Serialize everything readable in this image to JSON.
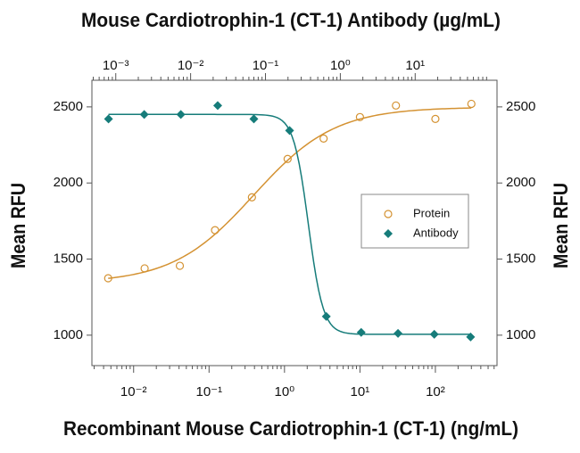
{
  "chart_data": {
    "type": "scatter",
    "x2label": "Mouse Cardiotrophin-1 (CT-1) Antibody (µg/mL)",
    "xlabel": "Recombinant Mouse Cardiotrophin-1 (CT-1) (ng/mL)",
    "ylabel": "Mean RFU",
    "y2label": "Mean RFU",
    "xscale": "log",
    "x2scale": "log",
    "fit_curve": true,
    "legend": "center right",
    "xlim": [
      0.0028,
      656
    ],
    "xticks": [
      {
        "value": 0.01,
        "label": "10⁻²"
      },
      {
        "value": 0.1,
        "label": "10⁻¹"
      },
      {
        "value": 1,
        "label": "10⁰"
      },
      {
        "value": 10,
        "label": "10¹"
      },
      {
        "value": 100,
        "label": "10²"
      }
    ],
    "x2lim": [
      0.00048,
      124
    ],
    "x2ticks": [
      {
        "value": 0.001,
        "label": "10⁻³"
      },
      {
        "value": 0.01,
        "label": "10⁻²"
      },
      {
        "value": 0.1,
        "label": "10⁻¹"
      },
      {
        "value": 1,
        "label": "10⁰"
      },
      {
        "value": 10,
        "label": "10¹"
      }
    ],
    "ylim": [
      800,
      2675
    ],
    "yticks": [
      1000,
      1500,
      2000,
      2500
    ],
    "y2lim": [
      800,
      2675
    ],
    "y2ticks": [
      1000,
      1500,
      2000,
      2500
    ],
    "series": [
      {
        "name": "Protein",
        "color": "#d49232",
        "marker": "circle",
        "x": [
          0.0046,
          0.014,
          0.041,
          0.12,
          0.37,
          1.1,
          3.3,
          10,
          30,
          100,
          300
        ],
        "values": [
          1374,
          1439,
          1456,
          1690,
          1906,
          2158,
          2292,
          2433,
          2509,
          2421,
          2520
        ]
      },
      {
        "name": "Antibody",
        "color": "#167c7a",
        "marker": "diamond",
        "axis": "x2",
        "x": [
          0.0008,
          0.0024,
          0.0074,
          0.023,
          0.07,
          0.21,
          0.65,
          1.9,
          5.9,
          18,
          55
        ],
        "values": [
          2421,
          2450,
          2450,
          2509,
          2421,
          2345,
          1123,
          1018,
          1012,
          1006,
          988
        ]
      }
    ]
  }
}
